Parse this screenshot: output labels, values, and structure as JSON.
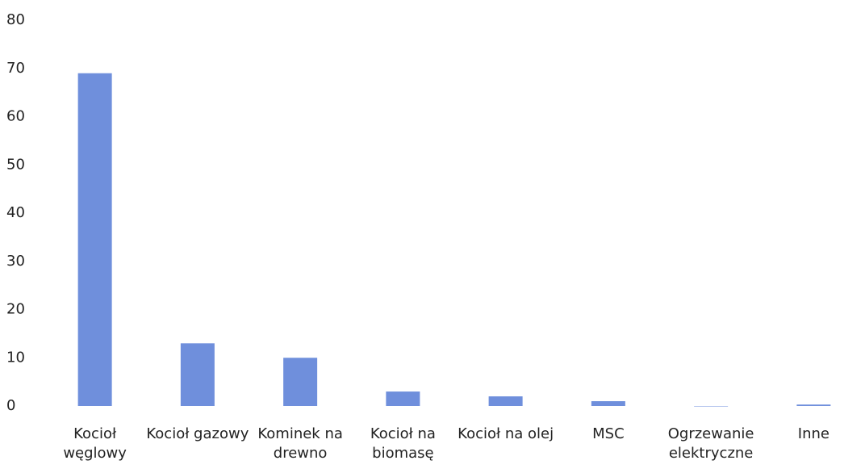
{
  "chart_data": {
    "type": "bar",
    "categories": [
      "Kocioł węglowy",
      "Kocioł gazowy",
      "Kominek na drewno",
      "Kocioł na biomasę",
      "Kocioł na olej",
      "MSC",
      "Ogrzewanie elektryczne",
      "Inne"
    ],
    "values": [
      69,
      13,
      10,
      3,
      2,
      1,
      0,
      0.3
    ],
    "color": "#6f8fdc",
    "ylim": [
      0,
      80
    ],
    "yticks": [
      0,
      10,
      20,
      30,
      40,
      50,
      60,
      70,
      80
    ],
    "grid": false
  }
}
